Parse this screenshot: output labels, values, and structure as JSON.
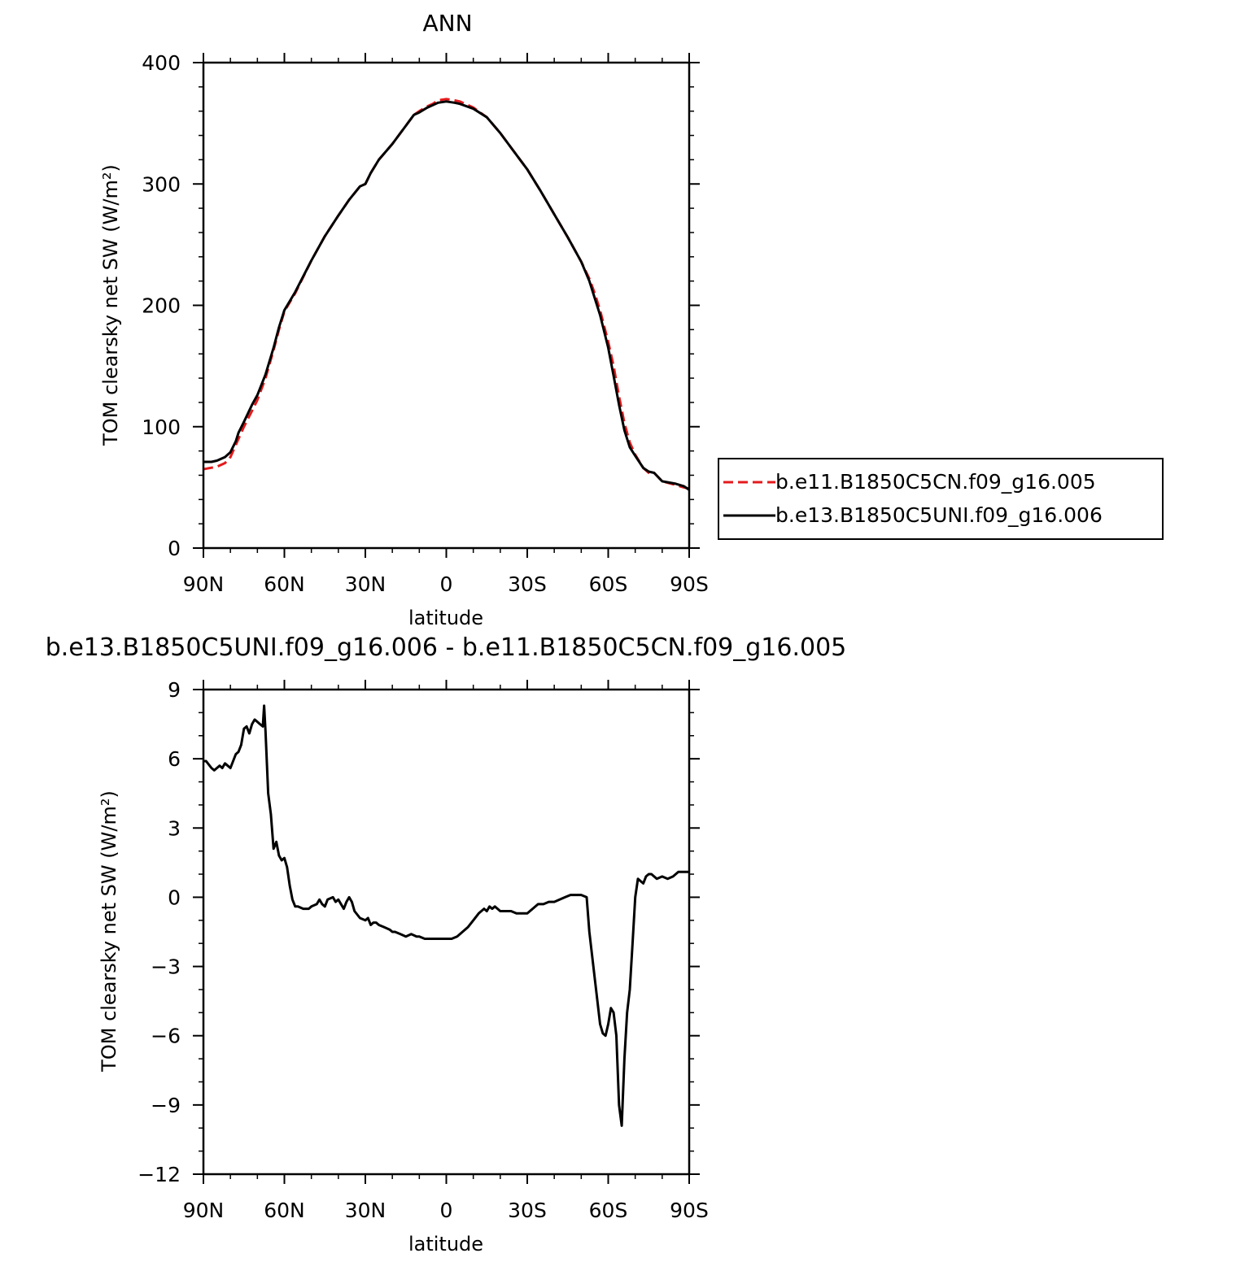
{
  "chart_data": [
    {
      "type": "line",
      "title": "ANN",
      "xlabel": "latitude",
      "ylabel": "TOM clearsky net SW (W/m²)",
      "xlim": [
        90,
        -90
      ],
      "ylim": [
        0,
        400
      ],
      "x_ticks": [
        90,
        60,
        30,
        0,
        -30,
        -60,
        -90
      ],
      "x_tick_labels": [
        "90N",
        "60N",
        "30N",
        "0",
        "30S",
        "60S",
        "90S"
      ],
      "y_ticks": [
        0,
        100,
        200,
        300,
        400
      ],
      "y_tick_labels": [
        "0",
        "100",
        "200",
        "300",
        "400"
      ],
      "legend": "right",
      "series": [
        {
          "name": "b.e11.B1850C5CN.f09_g16.005",
          "color": "#e41a1c",
          "dash": "dashed",
          "x": [
            90,
            85,
            82,
            80,
            77,
            75,
            72,
            70,
            67,
            64,
            62,
            60,
            56,
            50,
            45,
            40,
            36,
            32,
            30,
            28,
            25,
            20,
            15,
            12,
            10,
            7,
            5,
            3,
            0,
            -3,
            -5,
            -10,
            -15,
            -20,
            -25,
            -30,
            -35,
            -40,
            -45,
            -50,
            -53,
            -55,
            -57,
            -60,
            -62,
            -64,
            -66,
            -68,
            -70,
            -73,
            -75,
            -77,
            -80,
            -85,
            -88,
            -90
          ],
          "y": [
            65,
            67,
            70,
            75,
            90,
            100,
            113,
            122,
            140,
            163,
            180,
            195,
            210,
            237,
            257,
            274,
            287,
            298,
            300,
            309,
            320,
            333,
            348,
            357,
            360,
            364,
            366,
            369,
            370,
            369,
            368,
            363,
            355,
            342,
            327,
            312,
            294,
            275,
            256,
            236,
            222,
            210,
            196,
            170,
            150,
            125,
            103,
            87,
            77,
            66,
            62,
            62,
            55,
            52,
            50,
            49
          ]
        },
        {
          "name": "b.e13.B1850C5UNI.f09_g16.006",
          "color": "#000000",
          "dash": "solid",
          "x": [
            90,
            87,
            85,
            82,
            80,
            78,
            77,
            75,
            72,
            70,
            67,
            64,
            62,
            60,
            56,
            50,
            45,
            40,
            36,
            32,
            30,
            28,
            25,
            20,
            15,
            12,
            10,
            7,
            5,
            3,
            0,
            -3,
            -5,
            -10,
            -15,
            -20,
            -25,
            -30,
            -35,
            -40,
            -45,
            -50,
            -53,
            -55,
            -57,
            -60,
            -62,
            -64,
            -66,
            -68,
            -70,
            -73,
            -75,
            -77,
            -80,
            -85,
            -88,
            -90
          ],
          "y": [
            71,
            71,
            72,
            75,
            79,
            88,
            95,
            104,
            118,
            126,
            143,
            165,
            182,
            196,
            211,
            237,
            257,
            274,
            287,
            298,
            300,
            309,
            320,
            333,
            348,
            357,
            359,
            363,
            365,
            367,
            368,
            367,
            366,
            362,
            355,
            342,
            327,
            312,
            294,
            275,
            256,
            236,
            220,
            206,
            192,
            165,
            142,
            118,
            97,
            83,
            76,
            66,
            63,
            62,
            55,
            53,
            51,
            48
          ]
        }
      ]
    },
    {
      "type": "line",
      "title": "b.e13.B1850C5UNI.f09_g16.006 - b.e11.B1850C5CN.f09_g16.005",
      "xlabel": "latitude",
      "ylabel": "TOM clearsky net SW (W/m²)",
      "xlim": [
        90,
        -90
      ],
      "ylim": [
        -12,
        9
      ],
      "x_ticks": [
        90,
        60,
        30,
        0,
        -30,
        -60,
        -90
      ],
      "x_tick_labels": [
        "90N",
        "60N",
        "30N",
        "0",
        "30S",
        "60S",
        "90S"
      ],
      "y_ticks": [
        -12,
        -9,
        -6,
        -3,
        0,
        3,
        6,
        9
      ],
      "y_tick_labels": [
        "−12",
        "−9",
        "−6",
        "−3",
        "0",
        "3",
        "6",
        "9"
      ],
      "series": [
        {
          "name": "",
          "color": "#000000",
          "dash": "solid",
          "x": [
            90,
            89,
            87,
            86,
            85,
            84,
            83,
            82,
            81,
            80,
            79,
            78,
            77,
            76,
            75,
            74,
            73,
            72,
            71,
            70,
            69,
            68,
            67.5,
            67,
            66,
            65,
            64,
            63,
            62,
            61,
            60,
            59,
            58,
            57,
            56,
            55,
            53,
            51,
            50,
            48,
            47,
            46,
            45,
            44,
            42,
            41,
            40,
            38,
            37,
            36,
            35,
            34,
            32,
            30,
            29,
            28,
            27,
            26,
            25,
            23,
            21,
            20,
            19,
            17,
            15,
            13,
            11,
            10,
            8,
            6,
            4,
            2,
            0,
            -2,
            -4,
            -6,
            -8,
            -10,
            -12,
            -14,
            -15,
            -16,
            -17,
            -18,
            -19,
            -20,
            -21,
            -22,
            -24,
            -26,
            -28,
            -30,
            -32,
            -34,
            -36,
            -38,
            -40,
            -42,
            -44,
            -46,
            -48,
            -50,
            -52,
            -53,
            -54,
            -55,
            -56,
            -57,
            -58,
            -59,
            -60,
            -61,
            -62,
            -63,
            -64,
            -65,
            -66,
            -67,
            -68,
            -69,
            -70,
            -71,
            -72,
            -73,
            -74,
            -75,
            -76,
            -77,
            -78,
            -80,
            -82,
            -84,
            -86,
            -88,
            -90
          ],
          "y": [
            5.9,
            5.9,
            5.6,
            5.5,
            5.6,
            5.7,
            5.6,
            5.8,
            5.7,
            5.6,
            5.9,
            6.2,
            6.3,
            6.6,
            7.3,
            7.4,
            7.1,
            7.5,
            7.7,
            7.6,
            7.5,
            7.4,
            8.3,
            7.2,
            4.5,
            3.6,
            2.1,
            2.4,
            1.8,
            1.6,
            1.7,
            1.3,
            0.5,
            -0.1,
            -0.4,
            -0.4,
            -0.5,
            -0.5,
            -0.4,
            -0.3,
            -0.1,
            -0.3,
            -0.4,
            -0.1,
            0.0,
            -0.2,
            -0.1,
            -0.5,
            -0.2,
            0.0,
            -0.2,
            -0.6,
            -0.9,
            -1.0,
            -0.9,
            -1.2,
            -1.1,
            -1.1,
            -1.2,
            -1.3,
            -1.4,
            -1.5,
            -1.5,
            -1.6,
            -1.7,
            -1.6,
            -1.7,
            -1.7,
            -1.8,
            -1.8,
            -1.8,
            -1.8,
            -1.8,
            -1.8,
            -1.7,
            -1.5,
            -1.3,
            -1.0,
            -0.7,
            -0.5,
            -0.6,
            -0.4,
            -0.5,
            -0.4,
            -0.5,
            -0.6,
            -0.6,
            -0.6,
            -0.6,
            -0.7,
            -0.7,
            -0.7,
            -0.5,
            -0.3,
            -0.3,
            -0.2,
            -0.2,
            -0.1,
            0.0,
            0.1,
            0.1,
            0.1,
            0.0,
            -1.5,
            -2.5,
            -3.5,
            -4.5,
            -5.5,
            -5.9,
            -6.0,
            -5.5,
            -4.8,
            -5.0,
            -6.0,
            -9.0,
            -9.9,
            -7.0,
            -5.0,
            -4.0,
            -2.0,
            0.0,
            0.8,
            0.7,
            0.6,
            0.9,
            1.0,
            1.0,
            0.9,
            0.8,
            0.9,
            0.8,
            0.9,
            1.1,
            1.1,
            1.1
          ]
        }
      ]
    }
  ]
}
